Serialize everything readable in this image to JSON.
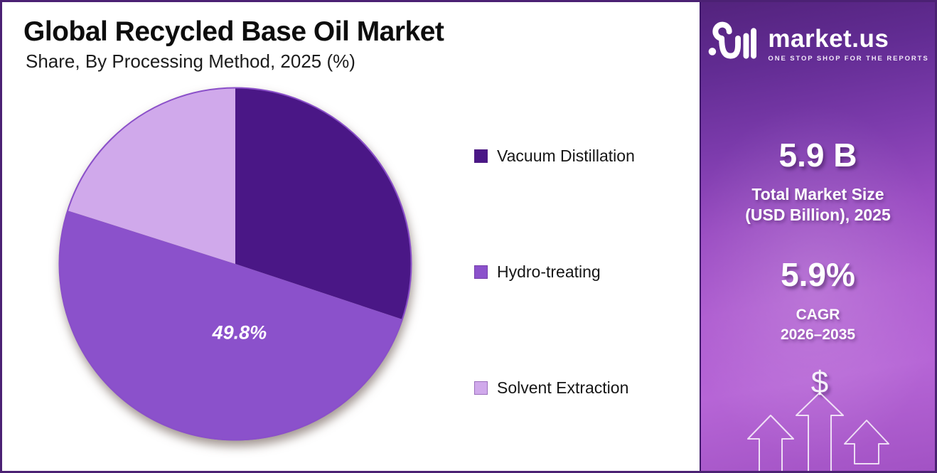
{
  "header": {
    "title": "Global Recycled Base Oil Market",
    "subtitle": "Share, By Processing Method, 2025 (%)"
  },
  "chart_data": {
    "type": "pie",
    "categories": [
      "Vacuum Distillation",
      "Hydro-treating",
      "Solvent Extraction"
    ],
    "values": [
      30.1,
      49.8,
      20.1
    ],
    "colors": [
      "#4A1786",
      "#8B51CB",
      "#D0A9EB"
    ],
    "slice_labels": [
      "",
      "49.8%",
      ""
    ],
    "rim_color": "#8A4FC9",
    "title": "Global Recycled Base Oil Market",
    "subtitle": "Share, By Processing Method, 2025 (%)",
    "start_angle_deg": 0,
    "direction": "clockwise",
    "legend_position": "right",
    "units": "%"
  },
  "sidebar": {
    "logo": {
      "brand": "market.us",
      "tagline": "ONE STOP SHOP FOR THE REPORTS"
    },
    "stat1": {
      "value": "5.9 B",
      "label": "Total Market Size\n(USD Billion), 2025"
    },
    "stat2": {
      "value": "5.9%",
      "label": "CAGR\n2026–2035"
    },
    "dollar_sign": "$",
    "accent_color": "#8B51CB"
  }
}
